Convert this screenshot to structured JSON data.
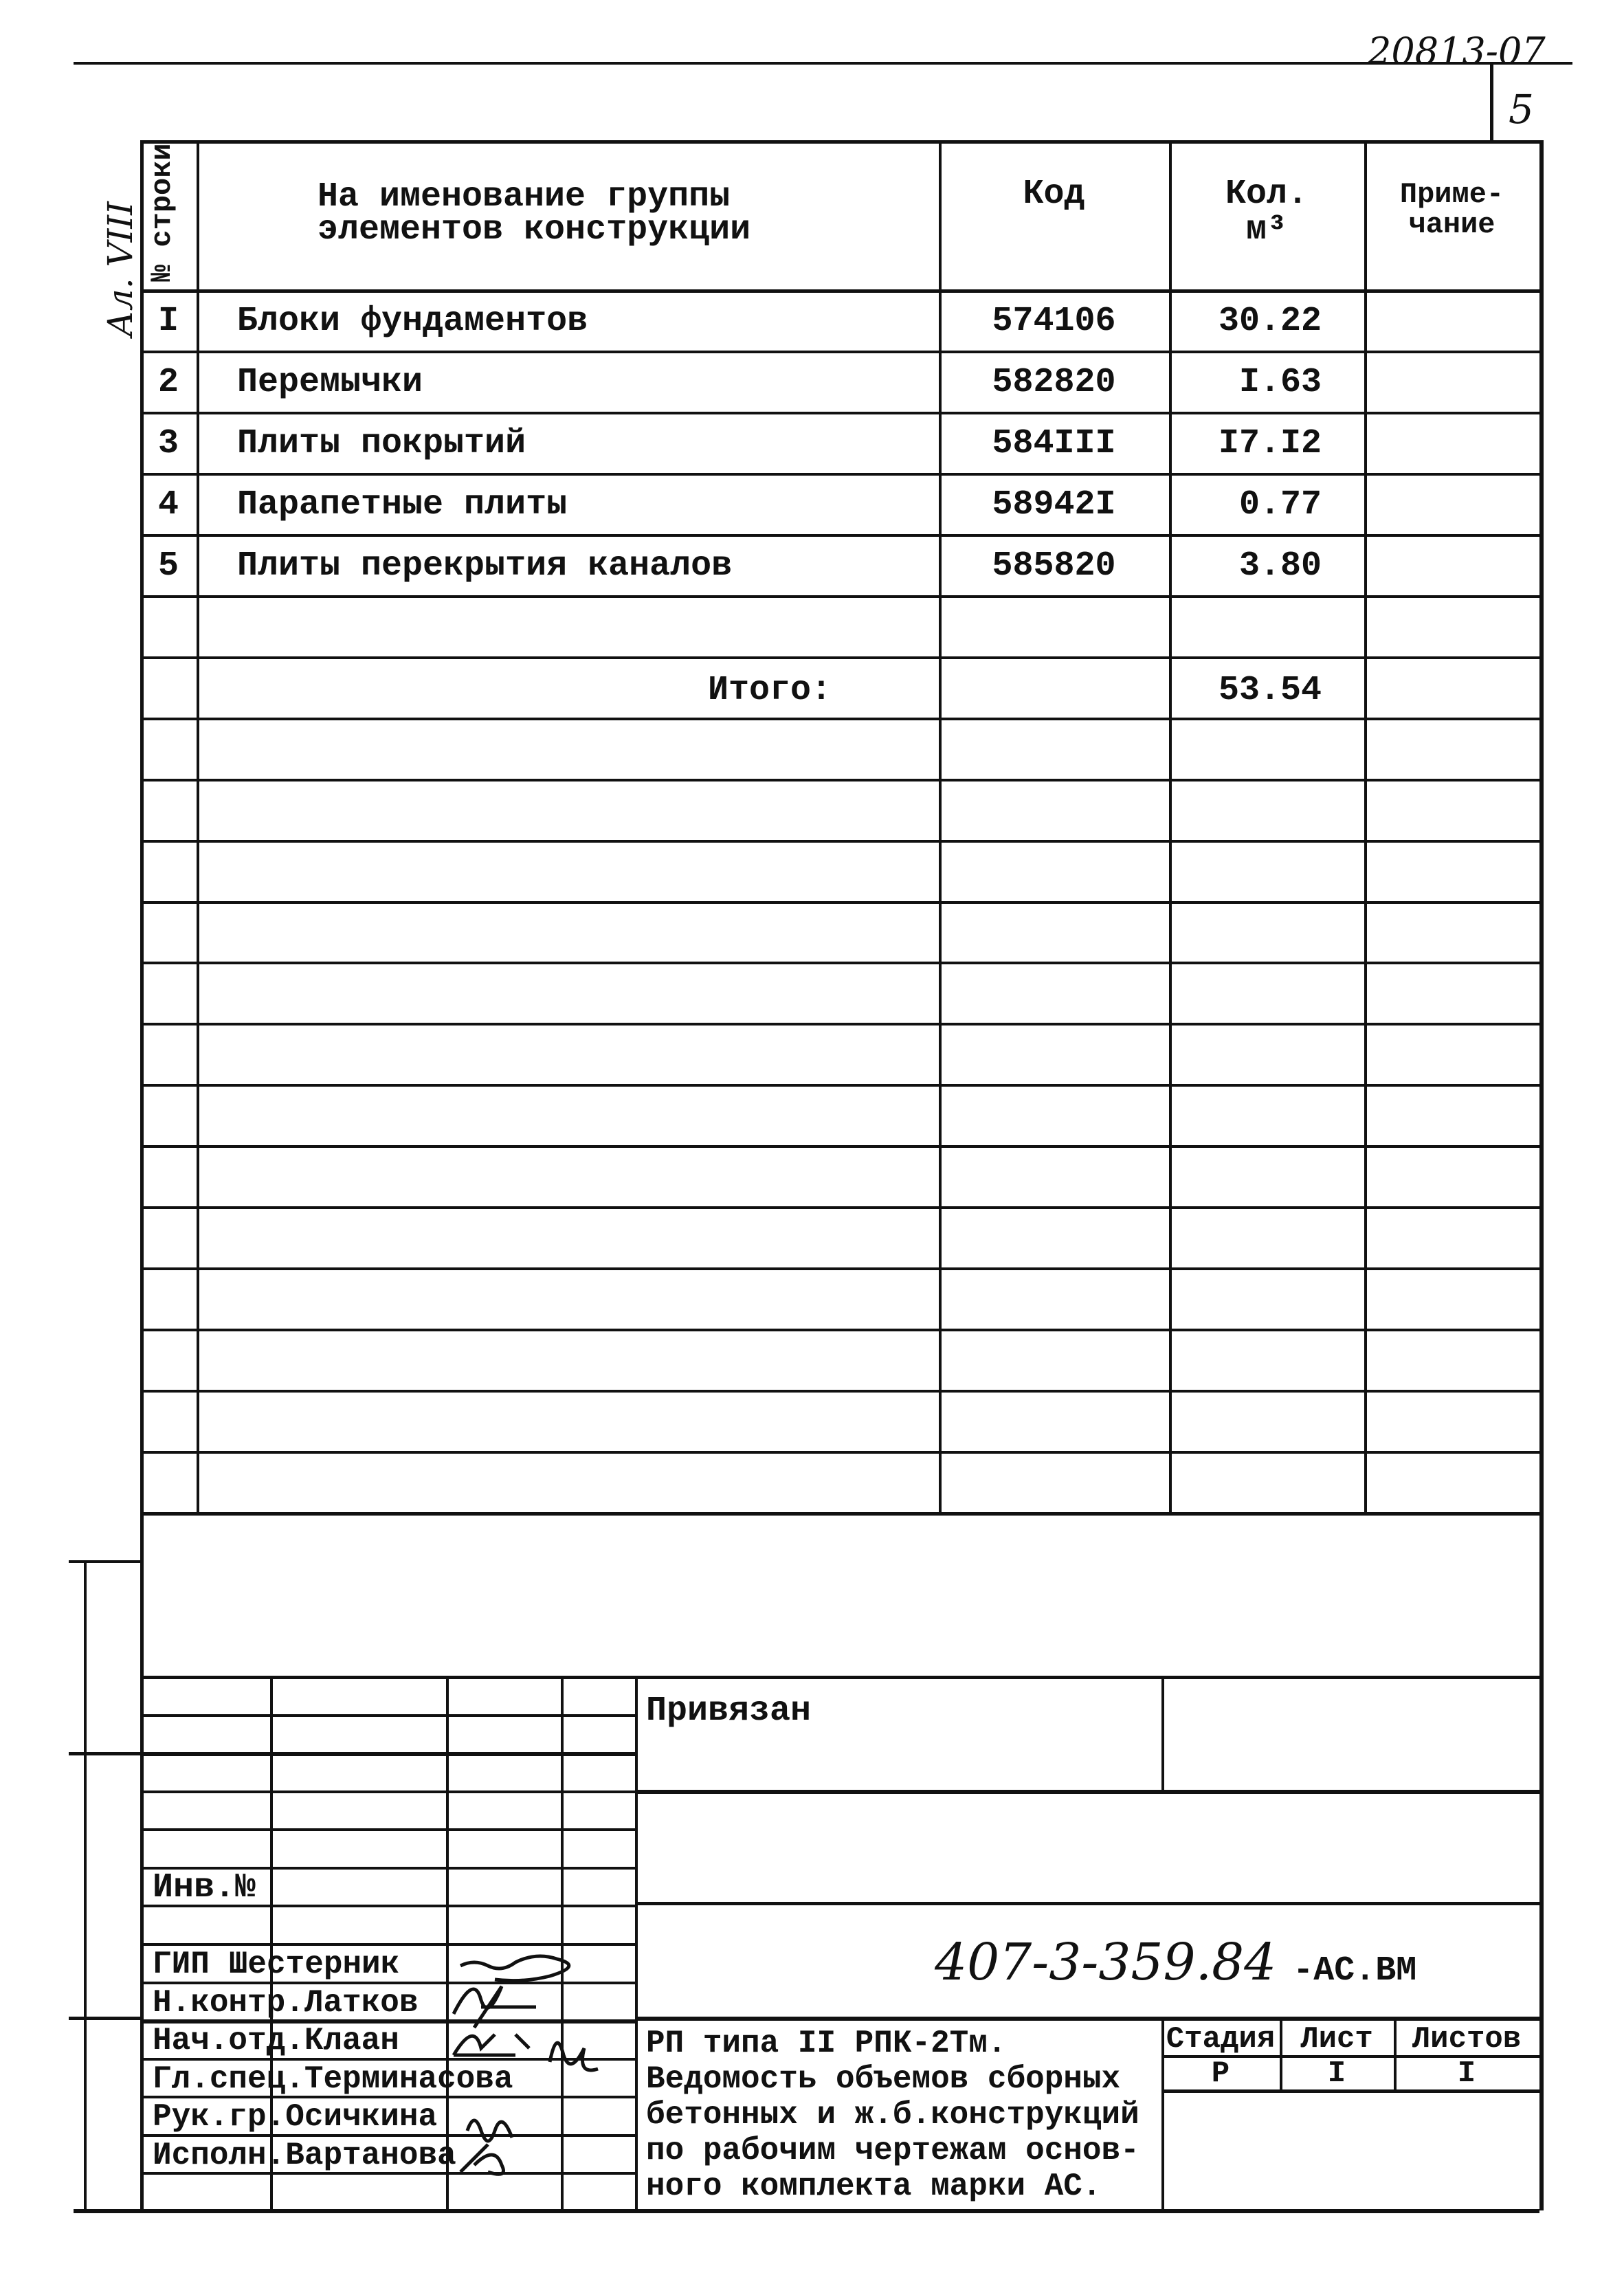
{
  "document_number_handwritten": "20813-07",
  "page_number": "5",
  "margin_note": "Ал. VIII",
  "table": {
    "headers": {
      "row_no": "№ строки",
      "name": [
        "На именование группы",
        "элементов конструкции"
      ],
      "code": "Код",
      "qty": [
        "Кол.",
        "м³"
      ],
      "note": [
        "Приме-",
        "чание"
      ]
    },
    "rows": [
      {
        "no": "I",
        "name": "Блоки фундаментов",
        "code": "574106",
        "qty": "30.22",
        "note": ""
      },
      {
        "no": "2",
        "name": "Перемычки",
        "code": "582820",
        "qty": "I.63",
        "note": ""
      },
      {
        "no": "3",
        "name": "Плиты покрытий",
        "code": "584III",
        "qty": "I7.I2",
        "note": ""
      },
      {
        "no": "4",
        "name": "Парапетные плиты",
        "code": "58942I",
        "qty": "0.77",
        "note": ""
      },
      {
        "no": "5",
        "name": "Плиты перекрытия каналов",
        "code": "585820",
        "qty": "3.80",
        "note": ""
      }
    ],
    "total_label": "Итого:",
    "total_value": "53.54"
  },
  "title_block": {
    "bound_label": "Привязан",
    "inv_label": "Инв.№",
    "document_code": "407-3-359.84",
    "document_suffix": "-АС.ВМ",
    "signatories": [
      {
        "role": "ГИП",
        "name": "Шестерник"
      },
      {
        "role": "Н.контр.",
        "name": "Латков"
      },
      {
        "role": "Нач.отд.",
        "name": "Клаан"
      },
      {
        "role": "Гл.спец.",
        "name": "Терминасова"
      },
      {
        "role": "Рук.гр.",
        "name": "Осичкина"
      },
      {
        "role": "Исполн.",
        "name": "Вартанова"
      }
    ],
    "description": [
      "РП типа II РПК-2Тм.",
      "Ведомость объемов сборных",
      "бетонных и ж.б.конструкций",
      "по рабочим чертежам основ-",
      "ного комплекта марки АС."
    ],
    "stage_headers": [
      "Стадия",
      "Лист",
      "Листов"
    ],
    "stage_values": [
      "Р",
      "I",
      "I"
    ]
  }
}
